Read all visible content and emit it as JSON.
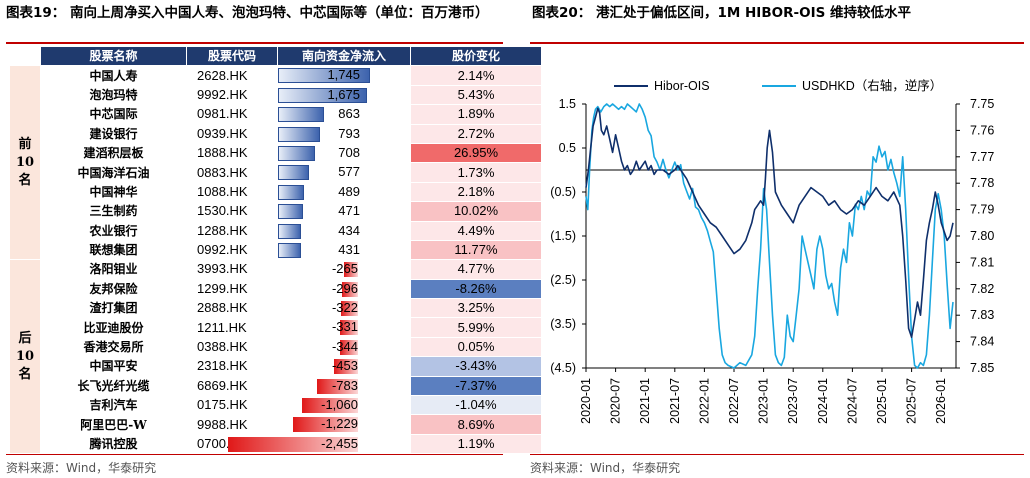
{
  "left": {
    "title": "图表19： 南向上周净买入中国人寿、泡泡玛特、中芯国际等（单位：百万港币）",
    "headers": [
      "股票名称",
      "股票代码",
      "南向资金净流入",
      "股价变化"
    ],
    "groups": [
      {
        "label": "前10名",
        "rows": [
          {
            "name": "中国人寿",
            "code": "2628.HK",
            "flow": "1,745",
            "flow_value": 1745,
            "chg": "2.14%",
            "chg_value": 2.14
          },
          {
            "name": "泡泡玛特",
            "code": "9992.HK",
            "flow": "1,675",
            "flow_value": 1675,
            "chg": "5.43%",
            "chg_value": 5.43
          },
          {
            "name": "中芯国际",
            "code": "0981.HK",
            "flow": "863",
            "flow_value": 863,
            "chg": "1.89%",
            "chg_value": 1.89
          },
          {
            "name": "建设银行",
            "code": "0939.HK",
            "flow": "793",
            "flow_value": 793,
            "chg": "2.72%",
            "chg_value": 2.72
          },
          {
            "name": "建滔积层板",
            "code": "1888.HK",
            "flow": "708",
            "flow_value": 708,
            "chg": "26.95%",
            "chg_value": 26.95
          },
          {
            "name": "中国海洋石油",
            "code": "0883.HK",
            "flow": "577",
            "flow_value": 577,
            "chg": "1.73%",
            "chg_value": 1.73
          },
          {
            "name": "中国神华",
            "code": "1088.HK",
            "flow": "489",
            "flow_value": 489,
            "chg": "2.18%",
            "chg_value": 2.18
          },
          {
            "name": "三生制药",
            "code": "1530.HK",
            "flow": "471",
            "flow_value": 471,
            "chg": "10.02%",
            "chg_value": 10.02
          },
          {
            "name": "农业银行",
            "code": "1288.HK",
            "flow": "434",
            "flow_value": 434,
            "chg": "4.49%",
            "chg_value": 4.49
          },
          {
            "name": "联想集团",
            "code": "0992.HK",
            "flow": "431",
            "flow_value": 431,
            "chg": "11.77%",
            "chg_value": 11.77
          }
        ]
      },
      {
        "label": "后10名",
        "rows": [
          {
            "name": "洛阳钼业",
            "code": "3993.HK",
            "flow": "-265",
            "flow_value": -265,
            "chg": "4.77%",
            "chg_value": 4.77
          },
          {
            "name": "友邦保险",
            "code": "1299.HK",
            "flow": "-296",
            "flow_value": -296,
            "chg": "-8.26%",
            "chg_value": -8.26
          },
          {
            "name": "渣打集团",
            "code": "2888.HK",
            "flow": "-322",
            "flow_value": -322,
            "chg": "3.25%",
            "chg_value": 3.25
          },
          {
            "name": "比亚迪股份",
            "code": "1211.HK",
            "flow": "-331",
            "flow_value": -331,
            "chg": "5.99%",
            "chg_value": 5.99
          },
          {
            "name": "香港交易所",
            "code": "0388.HK",
            "flow": "-344",
            "flow_value": -344,
            "chg": "0.05%",
            "chg_value": 0.05
          },
          {
            "name": "中国平安",
            "code": "2318.HK",
            "flow": "-453",
            "flow_value": -453,
            "chg": "-3.43%",
            "chg_value": -3.43
          },
          {
            "name": "长飞光纤光缆",
            "code": "6869.HK",
            "flow": "-783",
            "flow_value": -783,
            "chg": "-7.37%",
            "chg_value": -7.37
          },
          {
            "name": "吉利汽车",
            "code": "0175.HK",
            "flow": "-1,060",
            "flow_value": -1060,
            "chg": "-1.04%",
            "chg_value": -1.04
          },
          {
            "name": "阿里巴巴-W",
            "code": "9988.HK",
            "flow": "-1,229",
            "flow_value": -1229,
            "chg": "8.69%",
            "chg_value": 8.69
          },
          {
            "name": "腾讯控股",
            "code": "0700.HK",
            "flow": "-2,455",
            "flow_value": -2455,
            "chg": "1.19%",
            "chg_value": 1.19
          }
        ]
      }
    ],
    "source": "资料来源：Wind，华泰研究"
  },
  "right": {
    "title": "图表20： 港汇处于偏低区间，1M HIBOR-OIS 维持较低水平",
    "source": "资料来源：Wind，华泰研究"
  },
  "colors": {
    "header_bg": "#1f3a6e",
    "hibor": "#0f2f6b",
    "usdhkd": "#19a7e0",
    "pos_bar": "#3d63ad",
    "neg_bar": "#e01818"
  },
  "chart_data": {
    "type": "line",
    "legend": [
      "Hibor-OIS",
      "USDHKD（右轴，逆序）"
    ],
    "legend_position": "top",
    "x_ticks": [
      "2020-01",
      "2020-07",
      "2021-01",
      "2021-07",
      "2022-01",
      "2022-07",
      "2023-01",
      "2023-07",
      "2024-01",
      "2024-07",
      "2025-01",
      "2025-07",
      "2026-01"
    ],
    "x_tick_values": [
      2020.0,
      2020.5,
      2021.0,
      2021.5,
      2022.0,
      2022.5,
      2023.0,
      2023.5,
      2024.0,
      2024.5,
      2025.0,
      2025.5,
      2026.0
    ],
    "xlim": [
      2020.0,
      2026.25
    ],
    "y_left": {
      "lim": [
        -4.5,
        1.5
      ],
      "ticks": [
        1.5,
        0.5,
        -0.5,
        -1.5,
        -2.5,
        -3.5,
        -4.5
      ],
      "tick_labels": [
        "1.5",
        "0.5",
        "(0.5)",
        "(1.5)",
        "(2.5)",
        "(3.5)",
        "(4.5)"
      ]
    },
    "y_right": {
      "lim": [
        7.75,
        7.85
      ],
      "inverted": true,
      "ticks": [
        7.75,
        7.76,
        7.77,
        7.78,
        7.79,
        7.8,
        7.81,
        7.82,
        7.83,
        7.84,
        7.85
      ],
      "tick_labels": [
        "7.75",
        "7.76",
        "7.77",
        "7.78",
        "7.79",
        "7.80",
        "7.81",
        "7.82",
        "7.83",
        "7.84",
        "7.85"
      ]
    },
    "reference_line": 0,
    "series": [
      {
        "name": "Hibor-OIS",
        "axis": "left",
        "x": [
          2020.0,
          2020.04,
          2020.08,
          2020.12,
          2020.16,
          2020.2,
          2020.23,
          2020.26,
          2020.3,
          2020.35,
          2020.4,
          2020.45,
          2020.5,
          2020.55,
          2020.6,
          2020.65,
          2020.7,
          2020.75,
          2020.8,
          2020.85,
          2020.9,
          2020.95,
          2021.0,
          2021.05,
          2021.1,
          2021.15,
          2021.2,
          2021.3,
          2021.4,
          2021.5,
          2021.55,
          2021.6,
          2021.7,
          2021.8,
          2021.9,
          2022.0,
          2022.1,
          2022.2,
          2022.3,
          2022.4,
          2022.5,
          2022.6,
          2022.7,
          2022.8,
          2022.85,
          2022.9,
          2022.95,
          2023.0,
          2023.03,
          2023.06,
          2023.1,
          2023.15,
          2023.2,
          2023.3,
          2023.4,
          2023.5,
          2023.6,
          2023.7,
          2023.8,
          2023.9,
          2024.0,
          2024.1,
          2024.2,
          2024.3,
          2024.4,
          2024.5,
          2024.6,
          2024.7,
          2024.8,
          2024.9,
          2025.0,
          2025.1,
          2025.2,
          2025.3,
          2025.35,
          2025.4,
          2025.45,
          2025.5,
          2025.55,
          2025.6,
          2025.65,
          2025.7,
          2025.75,
          2025.8,
          2025.85,
          2025.9,
          2025.95,
          2026.0,
          2026.05,
          2026.1,
          2026.15,
          2026.2
        ],
        "y": [
          -0.4,
          0.0,
          0.5,
          1.0,
          1.2,
          1.4,
          1.3,
          0.9,
          0.8,
          1.0,
          0.7,
          0.4,
          0.8,
          0.5,
          0.2,
          0.0,
          0.1,
          -0.1,
          0.0,
          0.2,
          0.0,
          0.1,
          0.2,
          0.0,
          0.1,
          -0.1,
          0.0,
          0.0,
          -0.1,
          0.0,
          0.1,
          0.0,
          -0.2,
          -0.5,
          -0.8,
          -1.0,
          -1.2,
          -1.3,
          -1.5,
          -1.7,
          -1.9,
          -1.8,
          -1.6,
          -1.2,
          -0.9,
          -0.8,
          -0.7,
          -0.8,
          -0.2,
          0.5,
          0.9,
          0.4,
          -0.5,
          -0.8,
          -1.0,
          -1.2,
          -0.8,
          -0.6,
          -0.4,
          -0.5,
          -0.6,
          -0.8,
          -0.7,
          -0.9,
          -1.0,
          -0.9,
          -0.7,
          -0.8,
          -0.6,
          -0.4,
          -0.6,
          -0.7,
          -0.5,
          -0.8,
          -1.5,
          -2.5,
          -3.6,
          -3.8,
          -3.4,
          -3.0,
          -3.3,
          -2.5,
          -1.6,
          -1.2,
          -0.9,
          -0.5,
          -0.8,
          -1.2,
          -1.4,
          -1.6,
          -1.5,
          -1.2
        ]
      },
      {
        "name": "USDHKD（右轴，逆序）",
        "axis": "right",
        "x": [
          2020.0,
          2020.03,
          2020.06,
          2020.1,
          2020.13,
          2020.16,
          2020.2,
          2020.25,
          2020.3,
          2020.35,
          2020.4,
          2020.45,
          2020.5,
          2020.55,
          2020.6,
          2020.65,
          2020.7,
          2020.75,
          2020.8,
          2020.85,
          2020.9,
          2020.95,
          2021.0,
          2021.05,
          2021.1,
          2021.15,
          2021.2,
          2021.25,
          2021.3,
          2021.35,
          2021.4,
          2021.45,
          2021.5,
          2021.55,
          2021.6,
          2021.65,
          2021.7,
          2021.75,
          2021.8,
          2021.85,
          2021.9,
          2021.95,
          2022.0,
          2022.05,
          2022.1,
          2022.15,
          2022.2,
          2022.25,
          2022.3,
          2022.35,
          2022.4,
          2022.5,
          2022.6,
          2022.7,
          2022.8,
          2022.85,
          2022.9,
          2022.95,
          2023.0,
          2023.05,
          2023.1,
          2023.15,
          2023.2,
          2023.25,
          2023.3,
          2023.35,
          2023.4,
          2023.45,
          2023.5,
          2023.55,
          2023.6,
          2023.65,
          2023.7,
          2023.75,
          2023.8,
          2023.85,
          2023.9,
          2023.95,
          2024.0,
          2024.05,
          2024.1,
          2024.15,
          2024.2,
          2024.25,
          2024.3,
          2024.35,
          2024.4,
          2024.45,
          2024.5,
          2024.55,
          2024.6,
          2024.65,
          2024.7,
          2024.75,
          2024.8,
          2024.85,
          2024.9,
          2024.95,
          2025.0,
          2025.05,
          2025.1,
          2025.15,
          2025.2,
          2025.25,
          2025.3,
          2025.35,
          2025.4,
          2025.45,
          2025.5,
          2025.55,
          2025.6,
          2025.65,
          2025.7,
          2025.75,
          2025.8,
          2025.85,
          2025.9,
          2025.95,
          2026.0,
          2026.05,
          2026.1,
          2026.15,
          2026.2
        ],
        "y": [
          7.785,
          7.79,
          7.775,
          7.76,
          7.755,
          7.752,
          7.751,
          7.753,
          7.751,
          7.75,
          7.751,
          7.75,
          7.751,
          7.752,
          7.751,
          7.752,
          7.75,
          7.751,
          7.752,
          7.753,
          7.75,
          7.752,
          7.755,
          7.76,
          7.762,
          7.77,
          7.772,
          7.775,
          7.771,
          7.775,
          7.778,
          7.775,
          7.772,
          7.775,
          7.773,
          7.78,
          7.783,
          7.786,
          7.782,
          7.789,
          7.79,
          7.793,
          7.795,
          7.798,
          7.802,
          7.806,
          7.82,
          7.835,
          7.845,
          7.848,
          7.849,
          7.85,
          7.848,
          7.849,
          7.845,
          7.838,
          7.82,
          7.805,
          7.782,
          7.79,
          7.81,
          7.83,
          7.845,
          7.848,
          7.849,
          7.846,
          7.83,
          7.838,
          7.84,
          7.83,
          7.82,
          7.8,
          7.805,
          7.81,
          7.815,
          7.82,
          7.805,
          7.8,
          7.805,
          7.815,
          7.82,
          7.818,
          7.825,
          7.83,
          7.812,
          7.805,
          7.81,
          7.795,
          7.8,
          7.788,
          7.79,
          7.785,
          7.79,
          7.783,
          7.785,
          7.77,
          7.772,
          7.766,
          7.77,
          7.768,
          7.775,
          7.771,
          7.776,
          7.78,
          7.785,
          7.77,
          7.79,
          7.815,
          7.838,
          7.849,
          7.85,
          7.848,
          7.849,
          7.845,
          7.83,
          7.81,
          7.79,
          7.784,
          7.79,
          7.8,
          7.818,
          7.835,
          7.825
        ]
      }
    ]
  }
}
